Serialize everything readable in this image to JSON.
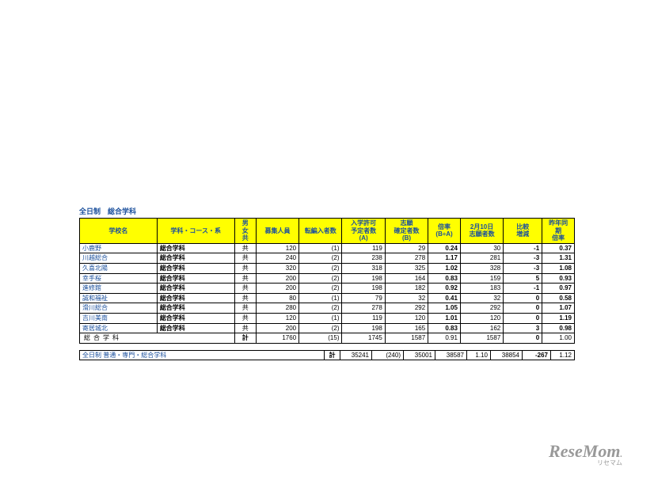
{
  "title": "全日制　総合学科",
  "headers": {
    "school": "学校名",
    "dept": "学科・コース・系",
    "gender": [
      "男",
      "女",
      "共"
    ],
    "recruit": "募集人員",
    "transfer": "転編入者数",
    "capacity": [
      "入学許可",
      "予定者数",
      "(A)"
    ],
    "applicants": [
      "志願",
      "確定者数",
      "(B)"
    ],
    "ratio": [
      "倍率",
      "(B÷A)"
    ],
    "feb10": [
      "2月10日",
      "志願者数"
    ],
    "compare": [
      "比較",
      "増減"
    ],
    "prev": [
      "昨年同",
      "期",
      "倍率"
    ]
  },
  "rows": [
    {
      "s": "小鹿野",
      "d": "総合学科",
      "g": "共",
      "r": "120",
      "t": "(1)",
      "c": "119",
      "a": "29",
      "ra": "0.24",
      "f": "30",
      "cm": "-1",
      "p": "0.37"
    },
    {
      "s": "川越総合",
      "d": "総合学科",
      "g": "共",
      "r": "240",
      "t": "(2)",
      "c": "238",
      "a": "278",
      "ra": "1.17",
      "f": "281",
      "cm": "-3",
      "p": "1.31"
    },
    {
      "s": "久喜北陽",
      "d": "総合学科",
      "g": "共",
      "r": "320",
      "t": "(2)",
      "c": "318",
      "a": "325",
      "ra": "1.02",
      "f": "328",
      "cm": "-3",
      "p": "1.08"
    },
    {
      "s": "幸手桜",
      "d": "総合学科",
      "g": "共",
      "r": "200",
      "t": "(2)",
      "c": "198",
      "a": "164",
      "ra": "0.83",
      "f": "159",
      "cm": "5",
      "p": "0.93"
    },
    {
      "s": "進修館",
      "d": "総合学科",
      "g": "共",
      "r": "200",
      "t": "(2)",
      "c": "198",
      "a": "182",
      "ra": "0.92",
      "f": "183",
      "cm": "-1",
      "p": "0.97"
    },
    {
      "s": "誠和福祉",
      "d": "総合学科",
      "g": "共",
      "r": "80",
      "t": "(1)",
      "c": "79",
      "a": "32",
      "ra": "0.41",
      "f": "32",
      "cm": "0",
      "p": "0.58"
    },
    {
      "s": "滑川総合",
      "d": "総合学科",
      "g": "共",
      "r": "280",
      "t": "(2)",
      "c": "278",
      "a": "292",
      "ra": "1.05",
      "f": "292",
      "cm": "0",
      "p": "1.07"
    },
    {
      "s": "吉川美南",
      "d": "総合学科",
      "g": "共",
      "r": "120",
      "t": "(1)",
      "c": "119",
      "a": "120",
      "ra": "1.01",
      "f": "120",
      "cm": "0",
      "p": "1.19"
    },
    {
      "s": "寄居城北",
      "d": "総合学科",
      "g": "共",
      "r": "200",
      "t": "(2)",
      "c": "198",
      "a": "165",
      "ra": "0.83",
      "f": "162",
      "cm": "3",
      "p": "0.98"
    }
  ],
  "subtotal": {
    "label": "総合学科",
    "g": "計",
    "r": "1760",
    "t": "(15)",
    "c": "1745",
    "a": "1587",
    "ra": "0.91",
    "f": "1587",
    "cm": "0",
    "p": "1.00"
  },
  "grand": {
    "label": "全日制 普通・専門・総合学科",
    "g": "計",
    "r": "35241",
    "t": "(240)",
    "c": "35001",
    "a": "38587",
    "ra": "1.10",
    "f": "38854",
    "cm": "-267",
    "p": "1.12"
  },
  "watermark": "ReseMom",
  "watermark_sub": "リセマム"
}
